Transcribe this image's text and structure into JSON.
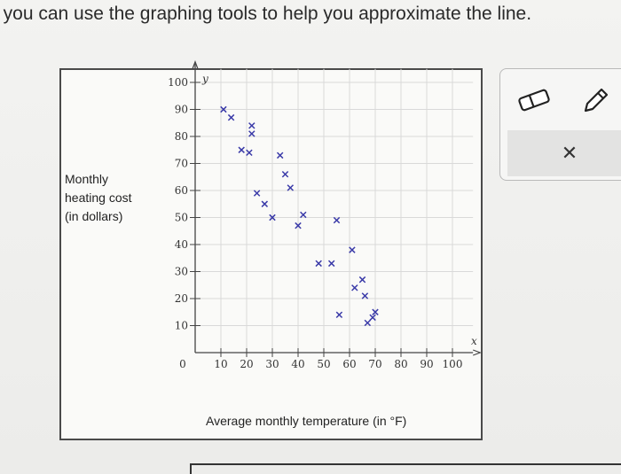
{
  "instruction": "t you can use the graphing tools to help you approximate the line.",
  "graph": {
    "ylabel_lines": [
      "Monthly",
      "heating cost",
      "(in dollars)"
    ],
    "xlabel": "Average monthly temperature (in °F)",
    "x_var": "x",
    "y_var": "y",
    "origin_label": "0"
  },
  "chart_data": {
    "type": "scatter",
    "xlabel": "Average monthly temperature (in °F)",
    "ylabel": "Monthly heating cost (in dollars)",
    "xlim": [
      0,
      100
    ],
    "ylim": [
      0,
      100
    ],
    "x_ticks": [
      10,
      20,
      30,
      40,
      50,
      60,
      70,
      80,
      90,
      100
    ],
    "y_ticks": [
      10,
      20,
      30,
      40,
      50,
      60,
      70,
      80,
      90,
      100
    ],
    "grid": true,
    "marker": "x",
    "marker_color": "#3a3aa8",
    "points": [
      [
        11,
        90
      ],
      [
        14,
        87
      ],
      [
        18,
        75
      ],
      [
        21,
        74
      ],
      [
        22,
        81
      ],
      [
        22,
        84
      ],
      [
        24,
        59
      ],
      [
        27,
        55
      ],
      [
        30,
        50
      ],
      [
        33,
        73
      ],
      [
        35,
        66
      ],
      [
        37,
        61
      ],
      [
        40,
        47
      ],
      [
        42,
        51
      ],
      [
        48,
        33
      ],
      [
        53,
        33
      ],
      [
        55,
        49
      ],
      [
        56,
        14
      ],
      [
        61,
        38
      ],
      [
        62,
        24
      ],
      [
        65,
        27
      ],
      [
        66,
        21
      ],
      [
        67,
        11
      ],
      [
        69,
        13
      ],
      [
        70,
        15
      ]
    ]
  },
  "tools": {
    "eraser_icon": "eraser-icon",
    "pencil_icon": "pencil-icon",
    "clear_label": "✕"
  }
}
